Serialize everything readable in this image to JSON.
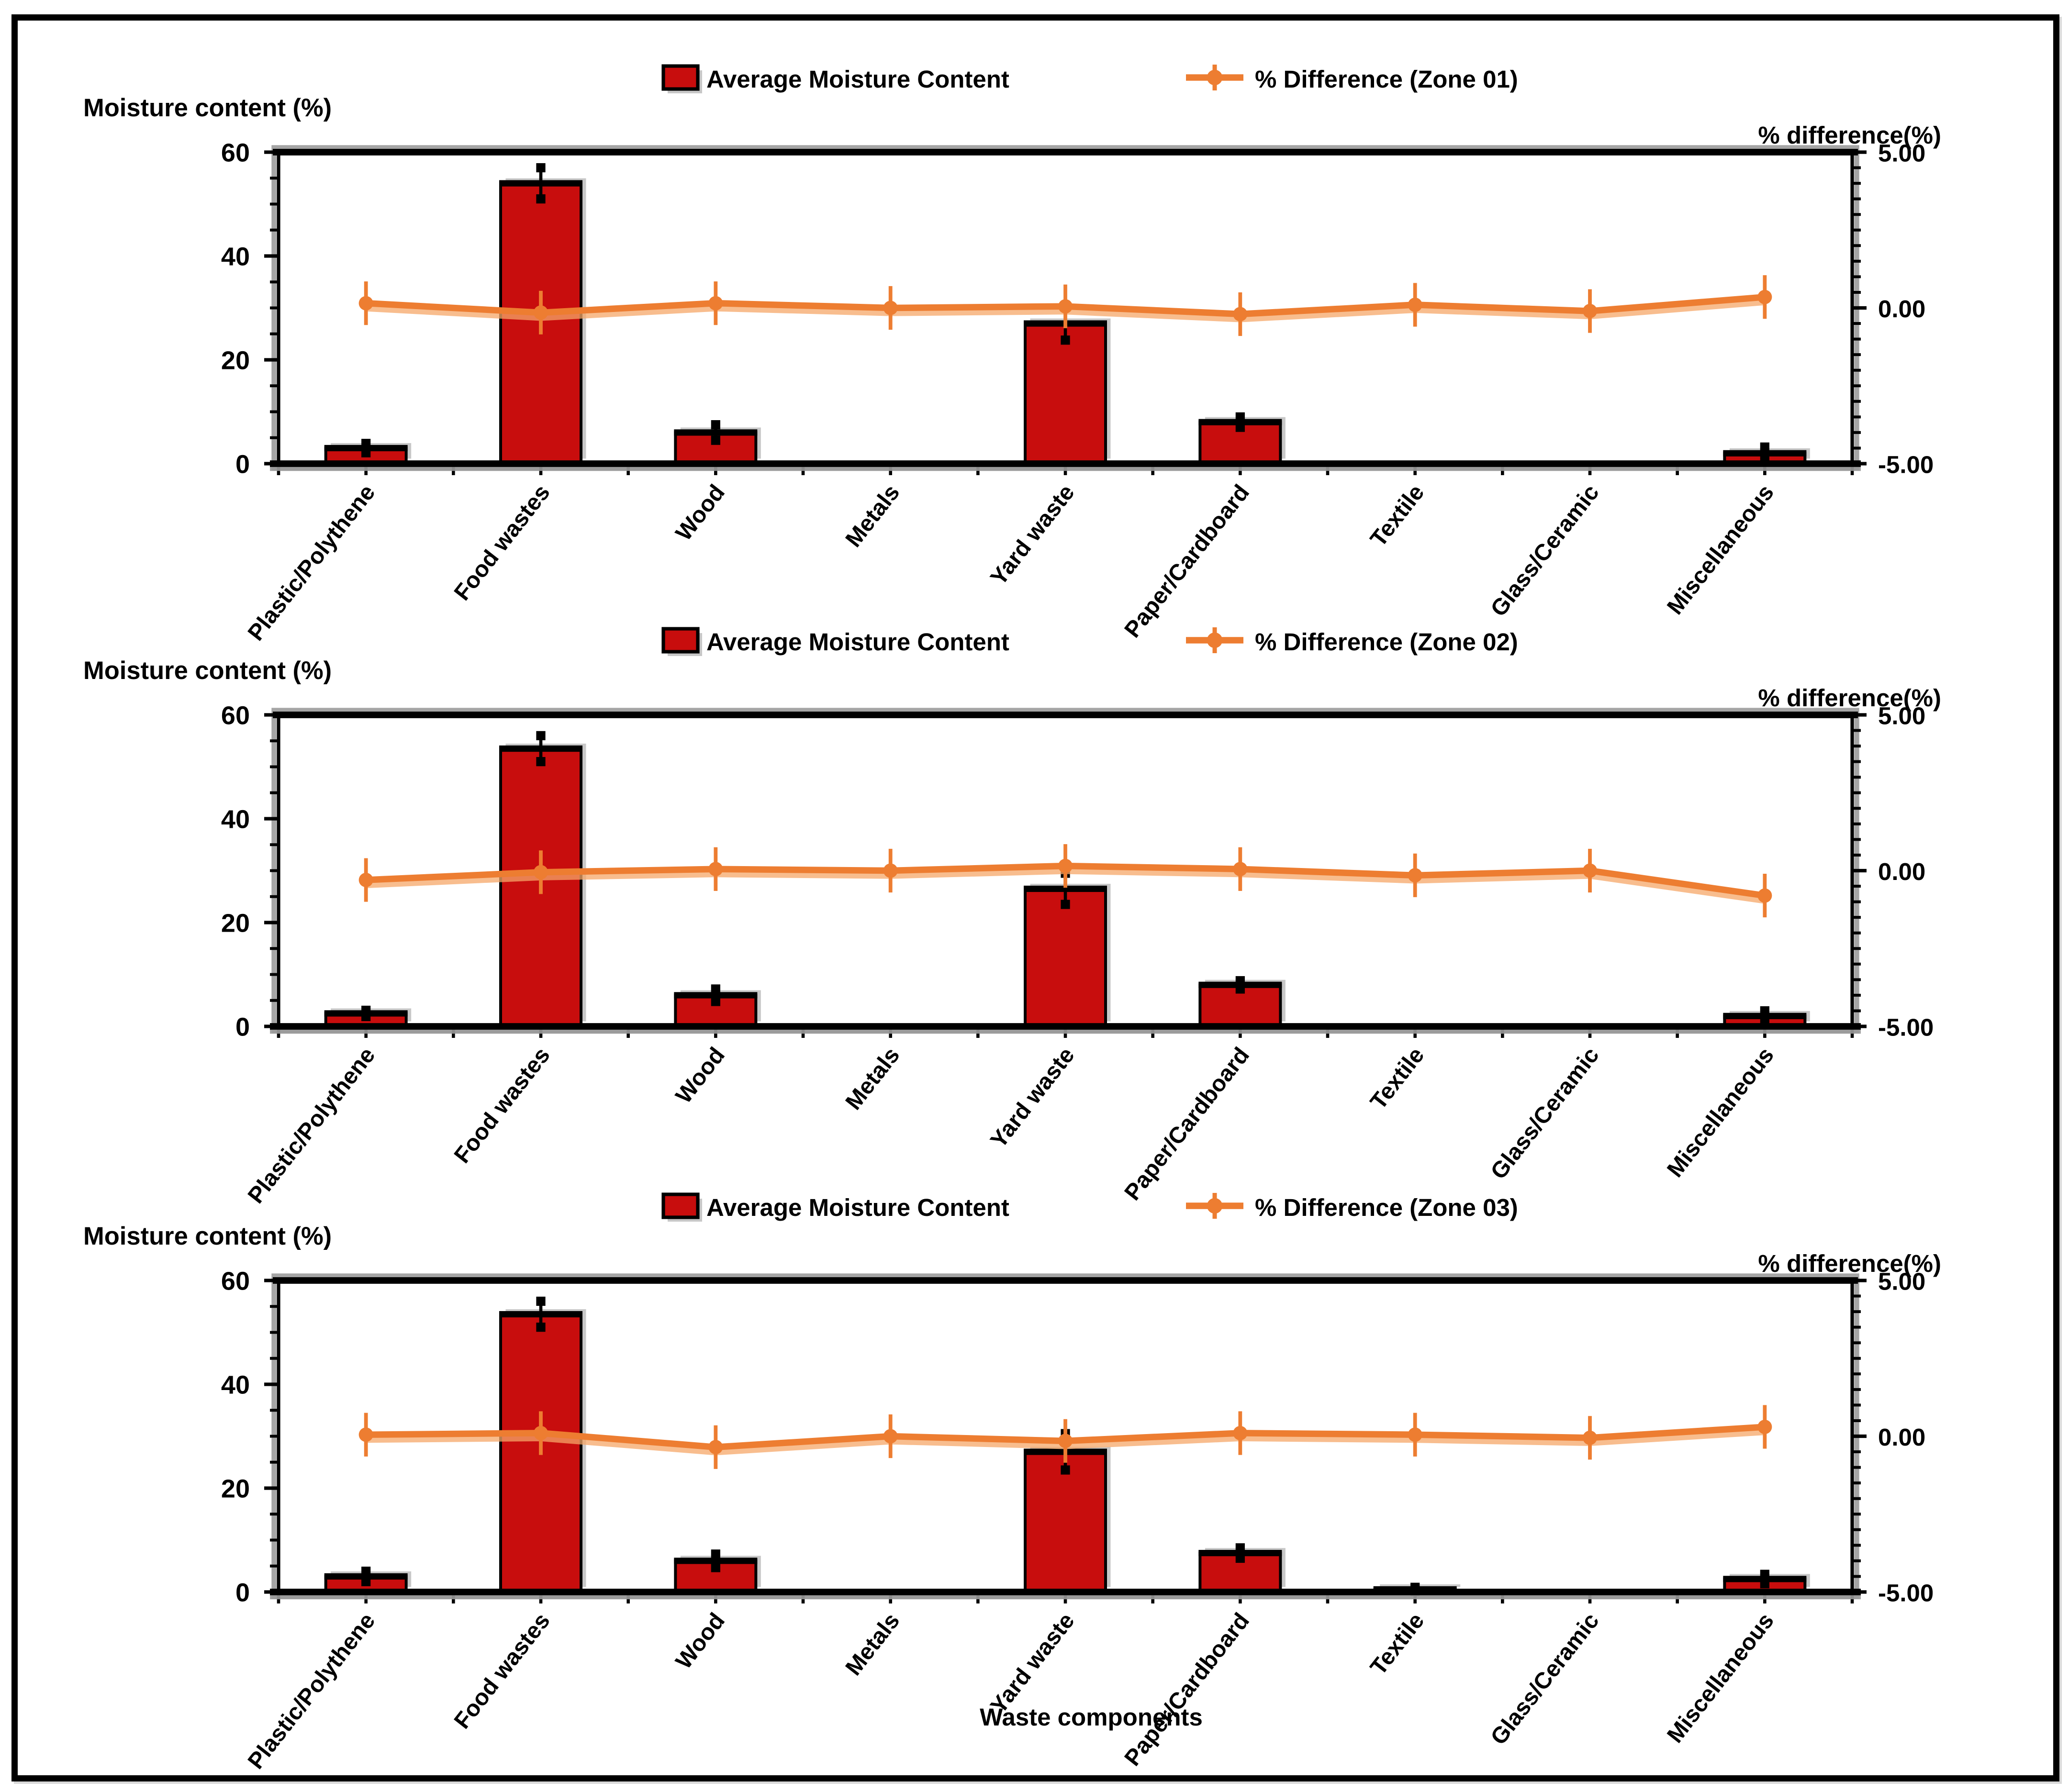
{
  "figure": {
    "background": "#ffffff",
    "border_color": "#000000",
    "x_axis_title": "Waste components",
    "left_axis_title": "Moisture content  (%)",
    "right_axis_title": "% difference(%)",
    "bar_legend_label": "Average Moisture Content",
    "colors": {
      "bar_fill": "#C80D0D",
      "bar_border": "#000000",
      "line": "#ED7D31",
      "line_shadow": "#F5A768",
      "shadow_gray": "#9B9B9B",
      "text": "#000000"
    }
  },
  "chart_data": [
    {
      "type": "bar",
      "zone": "Zone 01",
      "line_legend_label": "% Difference (Zone 01)",
      "categories": [
        "Plastic/Polythene",
        "Food wastes",
        "Wood",
        "Metals",
        "Yard waste",
        "Paper/Cardboard",
        "Textile",
        "Glass/Ceramic",
        "Miscellaneous"
      ],
      "left_axis": {
        "title": "Moisture content  (%)",
        "min": 0,
        "max": 60,
        "tick_labels": [
          "0",
          "20",
          "40",
          "60"
        ],
        "tick_values": [
          0,
          20,
          40,
          60
        ],
        "minor_step": 5
      },
      "right_axis": {
        "title": "% difference(%)",
        "min": -5,
        "max": 5,
        "tick_labels": [
          "5.00",
          "0.00",
          "-5.00"
        ],
        "tick_values": [
          5,
          0,
          -5
        ],
        "minor_step": 0.5
      },
      "series": [
        {
          "name": "Average Moisture Content",
          "type": "bar",
          "axis": "left",
          "values": [
            3,
            54,
            6,
            0,
            27,
            8,
            0,
            0,
            2
          ],
          "errors": [
            0.9,
            3,
            1.5,
            0,
            3.2,
            1,
            0,
            0,
            1.2
          ]
        },
        {
          "name": "% Difference (Zone 01)",
          "type": "line",
          "axis": "right",
          "values": [
            0.15,
            -0.15,
            0.15,
            0,
            0.05,
            -0.2,
            0.1,
            -0.1,
            0.35
          ],
          "point_error": 0.35
        }
      ],
      "legend_position": "top-center",
      "grid": false
    },
    {
      "type": "bar",
      "zone": "Zone 02",
      "line_legend_label": "% Difference (Zone 02)",
      "categories": [
        "Plastic/Polythene",
        "Food wastes",
        "Wood",
        "Metals",
        "Yard waste",
        "Paper/Cardboard",
        "Textile",
        "Glass/Ceramic",
        "Miscellaneous"
      ],
      "left_axis": {
        "title": "Moisture content  (%)",
        "min": 0,
        "max": 60,
        "tick_labels": [
          "0",
          "20",
          "40",
          "60"
        ],
        "tick_values": [
          0,
          20,
          40,
          60
        ],
        "minor_step": 5
      },
      "right_axis": {
        "title": "% difference(%)",
        "min": -5,
        "max": 5,
        "tick_labels": [
          "5.00",
          "0.00",
          "-5.00"
        ],
        "tick_values": [
          5,
          0,
          -5
        ],
        "minor_step": 0.5
      },
      "series": [
        {
          "name": "Average Moisture Content",
          "type": "bar",
          "axis": "left",
          "values": [
            2.5,
            53.5,
            6,
            0,
            26.5,
            8,
            0,
            0,
            2
          ],
          "errors": [
            0.6,
            2.5,
            1.2,
            0,
            3,
            0.8,
            0,
            0,
            1
          ]
        },
        {
          "name": "% Difference (Zone 02)",
          "type": "line",
          "axis": "right",
          "values": [
            -0.3,
            -0.05,
            0.05,
            0,
            0.15,
            0.05,
            -0.15,
            0,
            -0.8
          ],
          "point_error": 0.35
        }
      ],
      "legend_position": "top-center",
      "grid": false
    },
    {
      "type": "bar",
      "zone": "Zone 03",
      "line_legend_label": "% Difference (Zone 03)",
      "categories": [
        "Plastic/Polythene",
        "Food wastes",
        "Wood",
        "Metals",
        "Yard waste",
        "Paper/Cardboard",
        "Textile",
        "Glass/Ceramic",
        "Miscellaneous"
      ],
      "left_axis": {
        "title": "Moisture content  (%)",
        "min": 0,
        "max": 60,
        "tick_labels": [
          "0",
          "20",
          "40",
          "60"
        ],
        "tick_values": [
          0,
          20,
          40,
          60
        ],
        "minor_step": 5
      },
      "right_axis": {
        "title": "% difference(%)",
        "min": -5,
        "max": 5,
        "tick_labels": [
          "5.00",
          "0.00",
          "-5.00"
        ],
        "tick_values": [
          5,
          0,
          -5
        ],
        "minor_step": 0.5
      },
      "series": [
        {
          "name": "Average Moisture Content",
          "type": "bar",
          "axis": "left",
          "values": [
            3,
            53.5,
            6,
            0,
            27,
            7.5,
            0.5,
            0,
            2.5
          ],
          "errors": [
            1,
            2.5,
            1.3,
            0,
            3.5,
            1,
            0.4,
            0,
            0.9
          ]
        },
        {
          "name": "% Difference (Zone 03)",
          "type": "line",
          "axis": "right",
          "values": [
            0.05,
            0.1,
            -0.35,
            0,
            -0.15,
            0.1,
            0.05,
            -0.05,
            0.3
          ],
          "point_error": 0.35
        }
      ],
      "xlabel": "Waste components",
      "legend_position": "top-center",
      "grid": false
    }
  ]
}
